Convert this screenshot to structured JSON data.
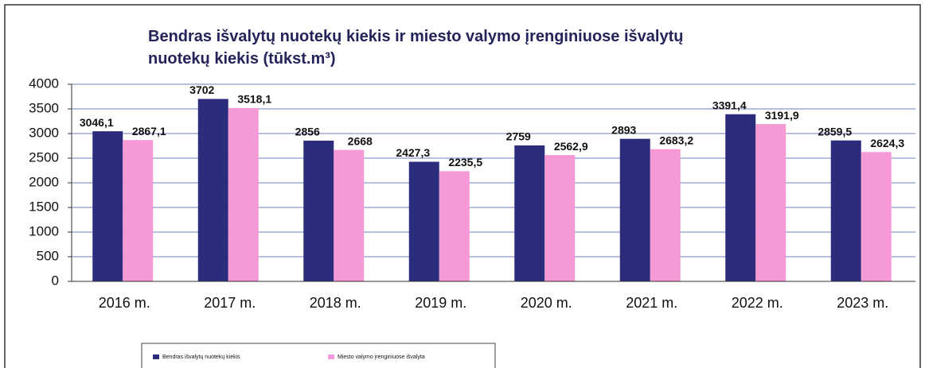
{
  "chart_data": {
    "type": "bar",
    "title": "Bendras išvalytų nuotekų kiekis ir miesto valymo įrenginiuose išvalytų nuotekų kiekis (tūkst.m³)",
    "categories": [
      "2016 m.",
      "2017 m.",
      "2018 m.",
      "2019 m.",
      "2020 m.",
      "2021 m.",
      "2022 m.",
      "2023 m."
    ],
    "series": [
      {
        "name": "Bendras išvalytų nuotekų kiekis",
        "color": "#2c2c7c",
        "values": [
          3046.1,
          3702,
          2856,
          2427.3,
          2759,
          2893,
          3391.4,
          2859.5
        ],
        "value_labels": [
          "3046,1",
          "3702",
          "2856",
          "2427,3",
          "2759",
          "2893",
          "3391,4",
          "2859,5"
        ]
      },
      {
        "name": "Miesto valymo įrenginiuose išvalyta",
        "color": "#f59ad6",
        "values": [
          2867.1,
          3518.1,
          2668,
          2235.5,
          2562.9,
          2683.2,
          3191.9,
          2624.3
        ],
        "value_labels": [
          "2867,1",
          "3518,1",
          "2668",
          "2235,5",
          "2562,9",
          "2683,2",
          "3191,9",
          "2624,3"
        ]
      }
    ],
    "ylim": [
      0,
      4000
    ],
    "yticks": [
      0,
      500,
      1000,
      1500,
      2000,
      2500,
      3000,
      3500,
      4000
    ],
    "grid": true
  }
}
